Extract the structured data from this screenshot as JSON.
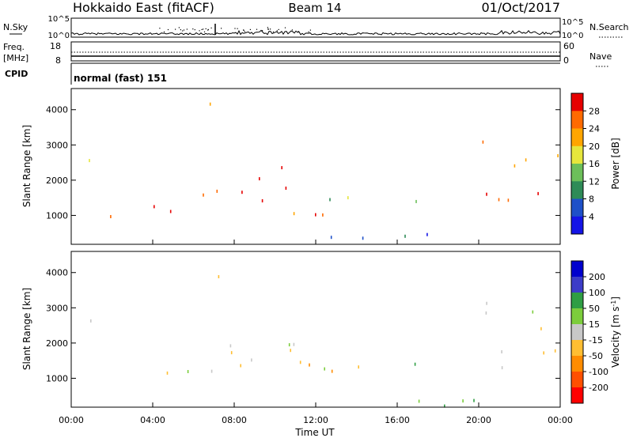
{
  "header": {
    "radar": "Hokkaido East (fitACF)",
    "beam": "Beam 14",
    "date": "01/Oct/2017"
  },
  "noise_panel": {
    "left_label": "N.Sky",
    "right_label": "N.Search",
    "left_ticks": [
      "10^5",
      "10^0"
    ],
    "right_ticks": [
      "10^5",
      "10^0"
    ]
  },
  "freq_panel": {
    "left_label_line1": "Freq.",
    "left_label_line2": "[MHz]",
    "right_label": "Nave",
    "left_ticks": [
      "18",
      "8"
    ],
    "right_ticks": [
      "60",
      "0"
    ]
  },
  "cpid_panel": {
    "label": "CPID",
    "mode": "normal (fast) 151"
  },
  "colors": {
    "power": [
      "#1414e6",
      "#1e50c8",
      "#2e8b57",
      "#6cbf5a",
      "#e6e63c",
      "#ffa500",
      "#ff6a00",
      "#e60000"
    ],
    "velocity": [
      "#0000cd",
      "#3c3cc8",
      "#2f9e44",
      "#7ccd3c",
      "#c8c8c8",
      "#ffbe32",
      "#ff8c00",
      "#ff5000",
      "#ff0000"
    ]
  },
  "chart_data": [
    {
      "type": "heatmap",
      "name": "power",
      "ylabel": "Slant Range [km]",
      "xlim": [
        0,
        24
      ],
      "ylim": [
        180,
        4600
      ],
      "yticks": [
        1000,
        2000,
        3000,
        4000
      ],
      "colorbar": {
        "label": "Power [dB]",
        "range": [
          0,
          32
        ],
        "ticks": [
          "4",
          "8",
          "12",
          "16",
          "20",
          "24",
          "28"
        ]
      },
      "echo_bands": [
        {
          "t": [
            0.0,
            7.0
          ],
          "r": [
            950,
            1350
          ],
          "level": 7
        },
        {
          "t": [
            5.0,
            9.5
          ],
          "r": [
            1300,
            2100
          ],
          "level": 7
        },
        {
          "t": [
            8.5,
            11.0
          ],
          "r": [
            1800,
            2800
          ],
          "level": 7
        },
        {
          "t": [
            9.0,
            13.5
          ],
          "r": [
            1000,
            1500
          ],
          "level": 6
        },
        {
          "t": [
            12.0,
            15.0
          ],
          "r": [
            1200,
            1800
          ],
          "level": 3
        },
        {
          "t": [
            14.0,
            18.0
          ],
          "r": [
            1300,
            1500
          ],
          "level": 3
        },
        {
          "t": [
            19.5,
            24.0
          ],
          "r": [
            1200,
            2000
          ],
          "level": 7
        },
        {
          "t": [
            20.0,
            24.0
          ],
          "r": [
            2400,
            3200
          ],
          "level": 5
        },
        {
          "t": [
            12.0,
            24.0
          ],
          "r": [
            250,
            550
          ],
          "level": 1
        },
        {
          "t": [
            6.5,
            7.3
          ],
          "r": [
            3800,
            4400
          ],
          "level": 5
        },
        {
          "t": [
            0.0,
            2.0
          ],
          "r": [
            2200,
            2700
          ],
          "level": 5
        }
      ]
    },
    {
      "type": "heatmap",
      "name": "velocity",
      "xlabel": "Time UT",
      "ylabel": "Slant Range [km]",
      "xlim": [
        0,
        24
      ],
      "ylim": [
        180,
        4600
      ],
      "xticks": [
        "00:00",
        "04:00",
        "08:00",
        "12:00",
        "16:00",
        "20:00",
        "00:00"
      ],
      "yticks": [
        1000,
        2000,
        3000,
        4000
      ],
      "colorbar": {
        "label": "Velocity [m s^-1]",
        "range": [
          -250,
          250
        ],
        "ticks": [
          "200",
          "100",
          "50",
          "15",
          "-15",
          "-50",
          "-100",
          "-200"
        ]
      },
      "echo_bands": [
        {
          "t": [
            0.0,
            7.0
          ],
          "r": [
            950,
            1350
          ],
          "v": 0
        },
        {
          "t": [
            5.0,
            9.5
          ],
          "r": [
            1300,
            2100
          ],
          "v": -30
        },
        {
          "t": [
            8.5,
            11.0
          ],
          "r": [
            1800,
            2800
          ],
          "v": 0
        },
        {
          "t": [
            9.0,
            13.5
          ],
          "r": [
            1000,
            1500
          ],
          "v": -40
        },
        {
          "t": [
            12.0,
            15.0
          ],
          "r": [
            1200,
            1800
          ],
          "v": 0
        },
        {
          "t": [
            14.0,
            18.0
          ],
          "r": [
            1300,
            1500
          ],
          "v": 60
        },
        {
          "t": [
            19.5,
            24.0
          ],
          "r": [
            1200,
            2000
          ],
          "v": 0
        },
        {
          "t": [
            20.0,
            24.0
          ],
          "r": [
            2400,
            3200
          ],
          "v": 0
        },
        {
          "t": [
            12.0,
            24.0
          ],
          "r": [
            250,
            550
          ],
          "v": 60
        },
        {
          "t": [
            6.5,
            7.3
          ],
          "r": [
            3800,
            4400
          ],
          "v": -30
        },
        {
          "t": [
            0.0,
            2.0
          ],
          "r": [
            2200,
            2700
          ],
          "v": -20
        }
      ]
    }
  ]
}
